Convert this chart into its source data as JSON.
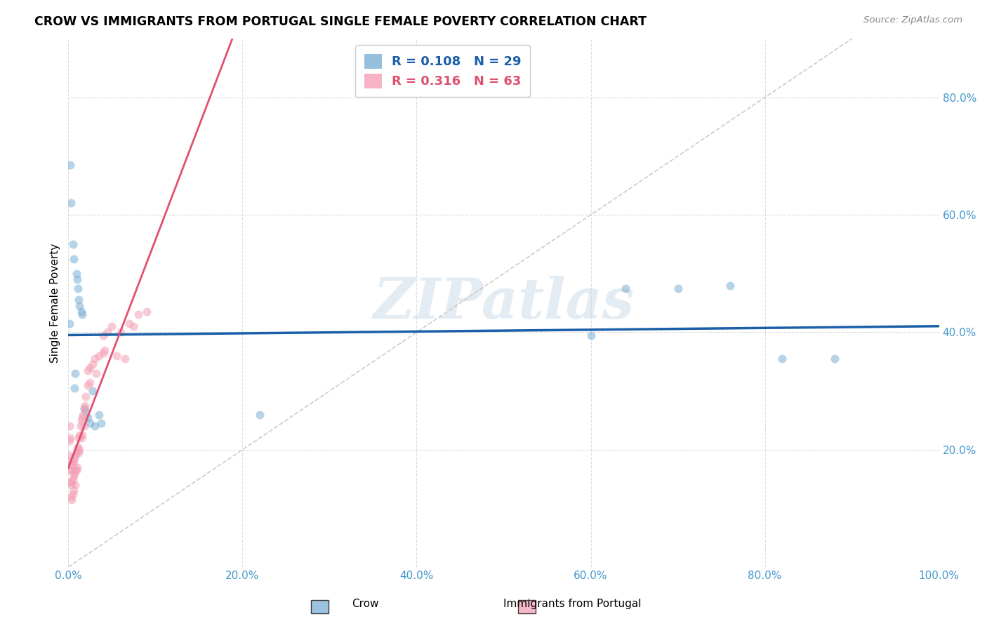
{
  "title": "CROW VS IMMIGRANTS FROM PORTUGAL SINGLE FEMALE POVERTY CORRELATION CHART",
  "source": "Source: ZipAtlas.com",
  "xlabel_crow": "Crow",
  "xlabel_portugal": "Immigrants from Portugal",
  "ylabel": "Single Female Poverty",
  "background_color": "#ffffff",
  "watermark": "ZIPatlas",
  "crow_color": "#7bafd4",
  "portugal_color": "#f4a0b5",
  "crow_R": 0.108,
  "crow_N": 29,
  "portugal_R": 0.316,
  "portugal_N": 63,
  "crow_line_color": "#1a5fa8",
  "portugal_line_color": "#e05070",
  "diagonal_color": "#cccccc",
  "crow_points_x": [
    0.001,
    0.002,
    0.003,
    0.005,
    0.006,
    0.007,
    0.008,
    0.009,
    0.01,
    0.011,
    0.012,
    0.013,
    0.015,
    0.016,
    0.018,
    0.02,
    0.022,
    0.025,
    0.028,
    0.03,
    0.035,
    0.038,
    0.22,
    0.6,
    0.64,
    0.7,
    0.76,
    0.82,
    0.88
  ],
  "crow_points_y": [
    0.415,
    0.685,
    0.62,
    0.55,
    0.525,
    0.305,
    0.33,
    0.5,
    0.49,
    0.475,
    0.455,
    0.445,
    0.435,
    0.43,
    0.27,
    0.265,
    0.255,
    0.245,
    0.3,
    0.24,
    0.26,
    0.245,
    0.26,
    0.395,
    0.475,
    0.475,
    0.48,
    0.355,
    0.355
  ],
  "portugal_points_x": [
    0.001,
    0.001,
    0.001,
    0.001,
    0.002,
    0.002,
    0.002,
    0.003,
    0.003,
    0.003,
    0.004,
    0.004,
    0.004,
    0.005,
    0.005,
    0.005,
    0.006,
    0.006,
    0.006,
    0.007,
    0.007,
    0.008,
    0.008,
    0.008,
    0.009,
    0.009,
    0.01,
    0.01,
    0.011,
    0.012,
    0.012,
    0.013,
    0.013,
    0.014,
    0.015,
    0.015,
    0.016,
    0.016,
    0.017,
    0.018,
    0.018,
    0.019,
    0.02,
    0.022,
    0.022,
    0.025,
    0.025,
    0.028,
    0.03,
    0.032,
    0.035,
    0.04,
    0.04,
    0.042,
    0.045,
    0.05,
    0.055,
    0.06,
    0.065,
    0.07,
    0.075,
    0.08,
    0.09
  ],
  "portugal_points_y": [
    0.24,
    0.215,
    0.19,
    0.165,
    0.22,
    0.18,
    0.145,
    0.175,
    0.145,
    0.12,
    0.165,
    0.14,
    0.115,
    0.175,
    0.15,
    0.125,
    0.18,
    0.155,
    0.13,
    0.185,
    0.16,
    0.19,
    0.165,
    0.14,
    0.195,
    0.165,
    0.2,
    0.17,
    0.205,
    0.22,
    0.195,
    0.225,
    0.2,
    0.24,
    0.25,
    0.22,
    0.255,
    0.225,
    0.26,
    0.27,
    0.24,
    0.275,
    0.29,
    0.31,
    0.335,
    0.34,
    0.315,
    0.345,
    0.355,
    0.33,
    0.36,
    0.365,
    0.395,
    0.37,
    0.4,
    0.41,
    0.36,
    0.4,
    0.355,
    0.415,
    0.41,
    0.43,
    0.435
  ],
  "xlim": [
    0.0,
    1.0
  ],
  "ylim": [
    0.0,
    0.9
  ],
  "xticks": [
    0.0,
    0.2,
    0.4,
    0.6,
    0.8,
    1.0
  ],
  "yticks": [
    0.0,
    0.2,
    0.4,
    0.6,
    0.8
  ],
  "xticklabels": [
    "0.0%",
    "20.0%",
    "40.0%",
    "60.0%",
    "80.0%",
    "100.0%"
  ],
  "yticklabels": [
    "",
    "20.0%",
    "40.0%",
    "60.0%",
    "80.0%"
  ],
  "grid_color": "#dddddd",
  "tick_color": "#4499cc",
  "marker_size": 75,
  "marker_alpha": 0.55,
  "legend_R_color": "#1a5fa8",
  "legend_R2_color": "#e05070"
}
